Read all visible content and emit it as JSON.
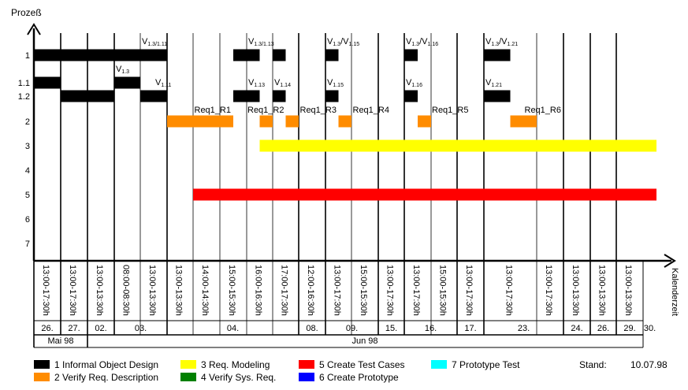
{
  "chart_data": {
    "type": "gantt",
    "y_axis_title": "Prozeß",
    "x_axis_title": "Kalenderzeit",
    "rows": [
      "1",
      "1.1",
      "1.2",
      "2",
      "3",
      "4",
      "5",
      "6",
      "7"
    ],
    "time_slots": [
      "13:00-17:30h",
      "13:00-17:30h",
      "13:00-13:30h",
      "08:00-08:30h",
      "13:00-13:30h",
      "13:00-13:30h",
      "14:00-14:30h",
      "15:00-15:30h",
      "16:00-16:30h",
      "17:00-17:30h",
      "12:00-16:30h",
      "13:00-17:30h",
      "15:00-15:30h",
      "13:00-17:30h",
      "13:00-17:30h",
      "15:00-15:30h",
      "13:00-17:30h",
      "13:00-17:30h",
      "13:00-17:30h",
      "13:00-13:30h",
      "13:00-13:30h",
      "13:00-13:30h"
    ],
    "days": [
      {
        "label": "26.",
        "first_slot": 0,
        "last_slot": 0
      },
      {
        "label": "27.",
        "first_slot": 1,
        "last_slot": 1
      },
      {
        "label": "02.",
        "first_slot": 2,
        "last_slot": 2
      },
      {
        "label": "03.",
        "first_slot": 3,
        "last_slot": 4
      },
      {
        "label": "04.",
        "first_slot": 5,
        "last_slot": 9
      },
      {
        "label": "08.",
        "first_slot": 10,
        "last_slot": 10
      },
      {
        "label": "09.",
        "first_slot": 11,
        "last_slot": 12
      },
      {
        "label": "15.",
        "first_slot": 13,
        "last_slot": 13
      },
      {
        "label": "16.",
        "first_slot": 14,
        "last_slot": 15
      },
      {
        "label": "17.",
        "first_slot": 16,
        "last_slot": 16
      },
      {
        "label": "23.",
        "first_slot": 17,
        "last_slot": 18
      },
      {
        "label": "24.",
        "first_slot": 19,
        "last_slot": 19
      },
      {
        "label": "26.",
        "first_slot": 20,
        "last_slot": 20
      },
      {
        "label": "29.",
        "first_slot": 21,
        "last_slot": 21
      },
      {
        "label": "30.",
        "first_slot": 22,
        "last_slot": 22
      }
    ],
    "months": [
      {
        "label": "Mai 98",
        "first_slot": 0,
        "last_slot": 1
      },
      {
        "label": "Jun 98",
        "first_slot": 2,
        "last_slot": 22
      }
    ],
    "bars": [
      {
        "row": "1",
        "start": 0,
        "end": 5,
        "process": "1"
      },
      {
        "row": "1",
        "start": 7.5,
        "end": 8.5,
        "process": "1"
      },
      {
        "row": "1",
        "start": 9,
        "end": 9.5,
        "process": "1"
      },
      {
        "row": "1",
        "start": 11,
        "end": 11.5,
        "process": "1"
      },
      {
        "row": "1",
        "start": 14,
        "end": 14.5,
        "process": "1"
      },
      {
        "row": "1",
        "start": 17,
        "end": 17.5,
        "process": "1"
      },
      {
        "row": "1.1",
        "start": 0,
        "end": 1,
        "process": "1"
      },
      {
        "row": "1.1",
        "start": 3,
        "end": 4,
        "process": "1"
      },
      {
        "row": "1.2",
        "start": 1,
        "end": 3,
        "process": "1"
      },
      {
        "row": "1.2",
        "start": 4,
        "end": 5,
        "process": "1"
      },
      {
        "row": "1.2",
        "start": 7.5,
        "end": 8.5,
        "process": "1"
      },
      {
        "row": "1.2",
        "start": 9,
        "end": 9.5,
        "process": "1"
      },
      {
        "row": "1.2",
        "start": 11,
        "end": 11.5,
        "process": "1"
      },
      {
        "row": "1.2",
        "start": 14,
        "end": 14.5,
        "process": "1"
      },
      {
        "row": "1.2",
        "start": 17,
        "end": 17.5,
        "process": "1"
      },
      {
        "row": "2",
        "start": 5,
        "end": 7.5,
        "process": "2"
      },
      {
        "row": "2",
        "start": 8.5,
        "end": 9,
        "process": "2"
      },
      {
        "row": "2",
        "start": 9.5,
        "end": 10,
        "process": "2"
      },
      {
        "row": "2",
        "start": 11.5,
        "end": 12,
        "process": "2"
      },
      {
        "row": "2",
        "start": 14.5,
        "end": 15,
        "process": "2"
      },
      {
        "row": "2",
        "start": 17.5,
        "end": 18,
        "process": "2"
      },
      {
        "row": "3",
        "start": 8.5,
        "end": 23.5,
        "process": "3"
      },
      {
        "row": "5",
        "start": 6,
        "end": 23.5,
        "process": "5"
      }
    ],
    "annotations": [
      {
        "row": "1",
        "x": 4,
        "base": "V",
        "sub": "1.3/1.11"
      },
      {
        "row": "1",
        "x": 8,
        "base": "V",
        "sub": "1.3/1.13"
      },
      {
        "row": "1",
        "x": 11,
        "base": "V",
        "sub": "1.3",
        "mid": "/V",
        "sub2": "1.15"
      },
      {
        "row": "1",
        "x": 14,
        "base": "V",
        "sub": "1.3",
        "mid": "/V",
        "sub2": "1.16"
      },
      {
        "row": "1",
        "x": 17,
        "base": "V",
        "sub": "1.3",
        "mid": "/V",
        "sub2": "1.21"
      },
      {
        "row": "1.1",
        "x": 3,
        "base": "V",
        "sub": "1.3"
      },
      {
        "row": "1.2",
        "x": 4.5,
        "base": "V",
        "sub": "1.11"
      },
      {
        "row": "1.2",
        "x": 8,
        "base": "V",
        "sub": "1.13"
      },
      {
        "row": "1.2",
        "x": 9,
        "base": "V",
        "sub": "1.14"
      },
      {
        "row": "1.2",
        "x": 11,
        "base": "V",
        "sub": "1.15"
      },
      {
        "row": "1.2",
        "x": 14,
        "base": "V",
        "sub": "1.16"
      },
      {
        "row": "1.2",
        "x": 17,
        "base": "V",
        "sub": "1.21"
      },
      {
        "row": "2",
        "x": 5.5,
        "base": "Req1_R1"
      },
      {
        "row": "2",
        "x": 7.5,
        "base": "Req1_R2"
      },
      {
        "row": "2",
        "x": 9.5,
        "base": "Req1_R3"
      },
      {
        "row": "2",
        "x": 11.5,
        "base": "Req1_R4"
      },
      {
        "row": "2",
        "x": 14.5,
        "base": "Req1_R5"
      },
      {
        "row": "2",
        "x": 17.5,
        "base": "Req1_R6"
      }
    ],
    "legend": [
      {
        "num": "1",
        "label": "Informal Object Design",
        "color": "#000000"
      },
      {
        "num": "2",
        "label": "Verify Req. Description",
        "color": "#ff8c00"
      },
      {
        "num": "3",
        "label": "Req. Modeling",
        "color": "#ffff00"
      },
      {
        "num": "4",
        "label": "Verify Sys. Req.",
        "color": "#008000"
      },
      {
        "num": "5",
        "label": "Create Test Cases",
        "color": "#ff0000"
      },
      {
        "num": "6",
        "label": "Create Prototype",
        "color": "#0000ff"
      },
      {
        "num": "7",
        "label": "Prototype Test",
        "color": "#00ffff"
      }
    ],
    "grid": true,
    "legend_placement": "bottom"
  },
  "stand": {
    "label": "Stand:",
    "date": "10.07.98"
  }
}
